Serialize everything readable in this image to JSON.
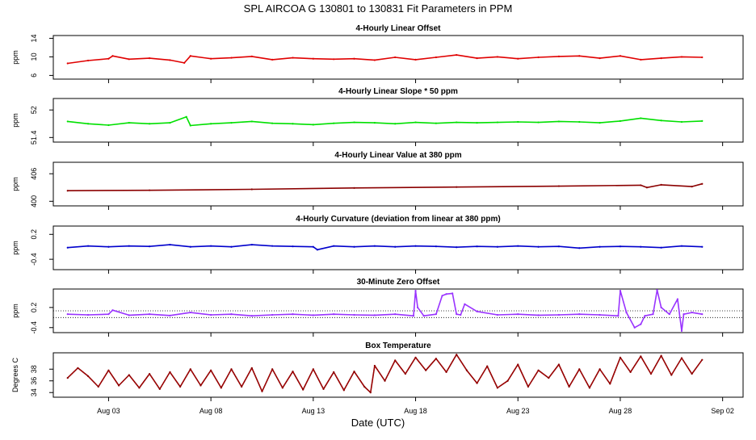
{
  "figure": {
    "title": "SPL    AIRCOA G   130801 to 130831   Fit Parameters in PPM",
    "xlabel": "Date (UTC)",
    "xaxis": {
      "ticks": [
        "Aug 03",
        "Aug 08",
        "Aug 13",
        "Aug 18",
        "Aug 23",
        "Aug 28",
        "Sep 02"
      ],
      "tick_days": [
        3,
        8,
        13,
        18,
        23,
        28,
        33
      ],
      "range_days": [
        0.3,
        34.0
      ]
    }
  },
  "chart_data": [
    {
      "type": "line",
      "title": "4-Hourly Linear Offset",
      "ylabel": "ppm",
      "yticks": [
        6,
        10,
        14
      ],
      "ylim": [
        5.2,
        14.6
      ],
      "series": [
        {
          "color": "#e00000",
          "x": [
            1.0,
            2.0,
            3.0,
            3.2,
            4.0,
            5.0,
            6.0,
            6.7,
            7.0,
            8.0,
            9.0,
            10.0,
            11.0,
            12.0,
            13.0,
            14.0,
            15.0,
            16.0,
            17.0,
            18.0,
            19.0,
            20.0,
            21.0,
            22.0,
            23.0,
            24.0,
            25.0,
            26.0,
            27.0,
            28.0,
            29.0,
            30.0,
            31.0,
            32.0
          ],
          "y": [
            8.6,
            9.2,
            9.6,
            10.2,
            9.5,
            9.7,
            9.3,
            8.7,
            10.2,
            9.6,
            9.8,
            10.1,
            9.4,
            9.8,
            9.6,
            9.5,
            9.6,
            9.3,
            9.9,
            9.4,
            9.9,
            10.4,
            9.7,
            10.0,
            9.6,
            9.9,
            10.1,
            10.2,
            9.7,
            10.2,
            9.4,
            9.7,
            10.0,
            9.9
          ]
        }
      ]
    },
    {
      "type": "line",
      "title": "4-Hourly Linear Slope * 50 ppm",
      "ylabel": "ppm",
      "yticks": [
        51.4,
        52.0
      ],
      "ylim": [
        51.3,
        52.25
      ],
      "series": [
        {
          "color": "#00e000",
          "x": [
            1.0,
            2.0,
            3.0,
            4.0,
            5.0,
            6.0,
            6.8,
            7.0,
            8.0,
            9.0,
            10.0,
            11.0,
            12.0,
            13.0,
            14.0,
            15.0,
            16.0,
            17.0,
            18.0,
            19.0,
            20.0,
            21.0,
            22.0,
            23.0,
            24.0,
            25.0,
            26.0,
            27.0,
            28.0,
            29.0,
            30.0,
            31.0,
            32.0
          ],
          "y": [
            51.75,
            51.7,
            51.67,
            51.72,
            51.7,
            51.72,
            51.85,
            51.66,
            51.7,
            51.72,
            51.75,
            51.71,
            51.7,
            51.68,
            51.71,
            51.73,
            51.72,
            51.7,
            51.73,
            51.71,
            51.73,
            51.72,
            51.73,
            51.74,
            51.73,
            51.75,
            51.74,
            51.72,
            51.76,
            51.82,
            51.77,
            51.74,
            51.76
          ]
        }
      ]
    },
    {
      "type": "line",
      "title": "4-Hourly Linear Value at 380 ppm",
      "ylabel": "ppm",
      "yticks": [
        400,
        406
      ],
      "ylim": [
        399.0,
        408.5
      ],
      "series": [
        {
          "color": "#8b0000",
          "x": [
            1.0,
            5.0,
            10.0,
            15.0,
            20.0,
            25.0,
            29.0,
            29.3,
            30.0,
            31.5,
            32.0
          ],
          "y": [
            402.3,
            402.4,
            402.6,
            402.9,
            403.1,
            403.3,
            403.5,
            403.0,
            403.6,
            403.2,
            403.8
          ]
        }
      ]
    },
    {
      "type": "line",
      "title": "4-Hourly Curvature (deviation from linear at 380 ppm)",
      "ylabel": "ppm",
      "yticks": [
        -0.4,
        0.2
      ],
      "ylim": [
        -0.65,
        0.4
      ],
      "series": [
        {
          "color": "#0000cc",
          "x": [
            1.0,
            2.0,
            3.0,
            4.0,
            5.0,
            6.0,
            7.0,
            8.0,
            9.0,
            10.0,
            11.0,
            12.0,
            13.0,
            13.2,
            14.0,
            15.0,
            16.0,
            17.0,
            18.0,
            19.0,
            20.0,
            21.0,
            22.0,
            23.0,
            24.0,
            25.0,
            26.0,
            27.0,
            28.0,
            29.0,
            30.0,
            31.0,
            32.0
          ],
          "y": [
            -0.12,
            -0.08,
            -0.1,
            -0.08,
            -0.09,
            -0.05,
            -0.1,
            -0.08,
            -0.1,
            -0.05,
            -0.08,
            -0.09,
            -0.1,
            -0.17,
            -0.08,
            -0.1,
            -0.08,
            -0.1,
            -0.08,
            -0.09,
            -0.11,
            -0.09,
            -0.1,
            -0.08,
            -0.1,
            -0.09,
            -0.13,
            -0.1,
            -0.09,
            -0.1,
            -0.12,
            -0.08,
            -0.1
          ]
        }
      ]
    },
    {
      "type": "line",
      "title": "30-Minute Zero Offset",
      "ylabel": "ppm",
      "yticks": [
        -0.4,
        0.2
      ],
      "ylim": [
        -0.55,
        0.75
      ],
      "reference_lines": [
        0.1,
        -0.1
      ],
      "series": [
        {
          "color": "#9933ff",
          "x": [
            1.0,
            2.0,
            3.0,
            3.2,
            4.0,
            5.0,
            6.0,
            7.0,
            8.0,
            9.0,
            10.0,
            11.0,
            12.0,
            13.0,
            14.0,
            15.0,
            16.0,
            17.0,
            17.9,
            18.0,
            18.1,
            18.4,
            19.0,
            19.3,
            19.5,
            19.8,
            20.0,
            20.2,
            20.4,
            21.0,
            22.0,
            23.0,
            24.0,
            25.0,
            26.0,
            27.0,
            27.9,
            28.0,
            28.3,
            28.7,
            29.0,
            29.2,
            29.6,
            29.8,
            30.0,
            30.4,
            30.8,
            31.0,
            31.1,
            31.5,
            32.0
          ],
          "y": [
            0.0,
            -0.02,
            0.0,
            0.12,
            -0.03,
            0.0,
            -0.04,
            0.05,
            -0.02,
            0.0,
            -0.05,
            -0.02,
            0.0,
            -0.03,
            0.0,
            -0.02,
            -0.03,
            0.0,
            -0.05,
            0.7,
            0.2,
            -0.05,
            0.0,
            0.55,
            0.6,
            0.62,
            0.0,
            -0.02,
            0.3,
            0.08,
            -0.02,
            0.0,
            -0.03,
            -0.02,
            0.0,
            -0.02,
            -0.05,
            0.7,
            0.05,
            -0.4,
            -0.3,
            -0.05,
            0.0,
            0.72,
            0.2,
            0.0,
            0.45,
            -0.5,
            0.0,
            0.05,
            0.0
          ]
        }
      ]
    },
    {
      "type": "line",
      "title": "Box Temperature",
      "ylabel": "Degrees C",
      "yticks": [
        34,
        36,
        38
      ],
      "ylim": [
        33.2,
        40.8
      ],
      "series": [
        {
          "color": "#8b0000",
          "overlay_color": "#e00000",
          "x": [
            1.0,
            1.5,
            2.0,
            2.5,
            3.0,
            3.5,
            4.0,
            4.5,
            5.0,
            5.5,
            6.0,
            6.5,
            7.0,
            7.5,
            8.0,
            8.5,
            9.0,
            9.5,
            10.0,
            10.5,
            11.0,
            11.5,
            12.0,
            12.5,
            13.0,
            13.5,
            14.0,
            14.5,
            15.0,
            15.5,
            15.8,
            16.0,
            16.5,
            17.0,
            17.5,
            18.0,
            18.5,
            19.0,
            19.5,
            20.0,
            20.5,
            21.0,
            21.5,
            22.0,
            22.5,
            23.0,
            23.5,
            24.0,
            24.5,
            25.0,
            25.5,
            26.0,
            26.5,
            27.0,
            27.5,
            28.0,
            28.5,
            29.0,
            29.5,
            30.0,
            30.5,
            31.0,
            31.5,
            32.0
          ],
          "y": [
            36.5,
            38.2,
            36.8,
            35.0,
            37.8,
            35.2,
            37.0,
            34.8,
            37.2,
            34.6,
            37.5,
            35.0,
            38.0,
            35.2,
            37.8,
            34.8,
            38.0,
            35.0,
            38.2,
            34.2,
            38.0,
            34.8,
            37.6,
            34.5,
            38.0,
            34.6,
            37.5,
            34.4,
            37.6,
            35.0,
            34.0,
            38.6,
            36.0,
            39.5,
            37.2,
            40.0,
            37.8,
            39.8,
            37.5,
            40.5,
            37.8,
            35.6,
            38.5,
            34.8,
            36.0,
            38.8,
            35.0,
            37.8,
            36.5,
            38.8,
            35.0,
            38.0,
            34.8,
            38.0,
            35.5,
            40.0,
            37.5,
            40.2,
            37.2,
            40.3,
            37.0,
            39.9,
            37.2,
            39.6
          ]
        }
      ]
    }
  ]
}
